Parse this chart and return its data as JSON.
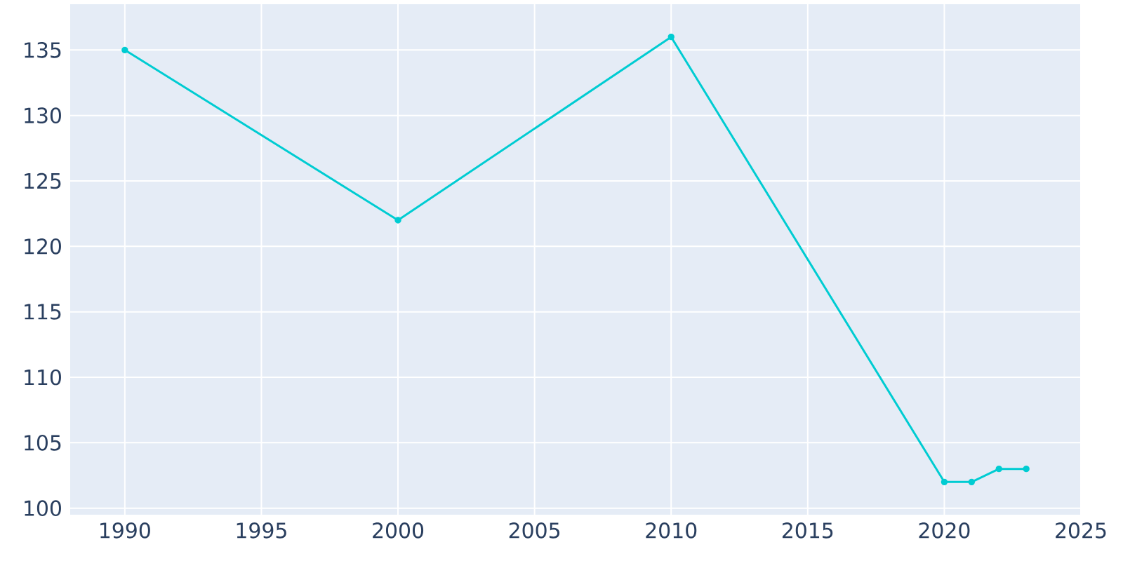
{
  "chart_data": {
    "type": "line",
    "x": [
      1990,
      2000,
      2010,
      2020,
      2021,
      2022,
      2023
    ],
    "series": [
      {
        "color": "#00ccd2",
        "values": [
          135,
          122,
          136,
          102,
          102,
          103,
          103
        ]
      }
    ],
    "xlim": [
      1988,
      2025
    ],
    "ylim": [
      99.5,
      138.5
    ],
    "xticks": [
      1990,
      1995,
      2000,
      2005,
      2010,
      2015,
      2020,
      2025
    ],
    "yticks": [
      100,
      105,
      110,
      115,
      120,
      125,
      130,
      135
    ],
    "grid": true,
    "marker": "circle",
    "line_style": "solid"
  }
}
